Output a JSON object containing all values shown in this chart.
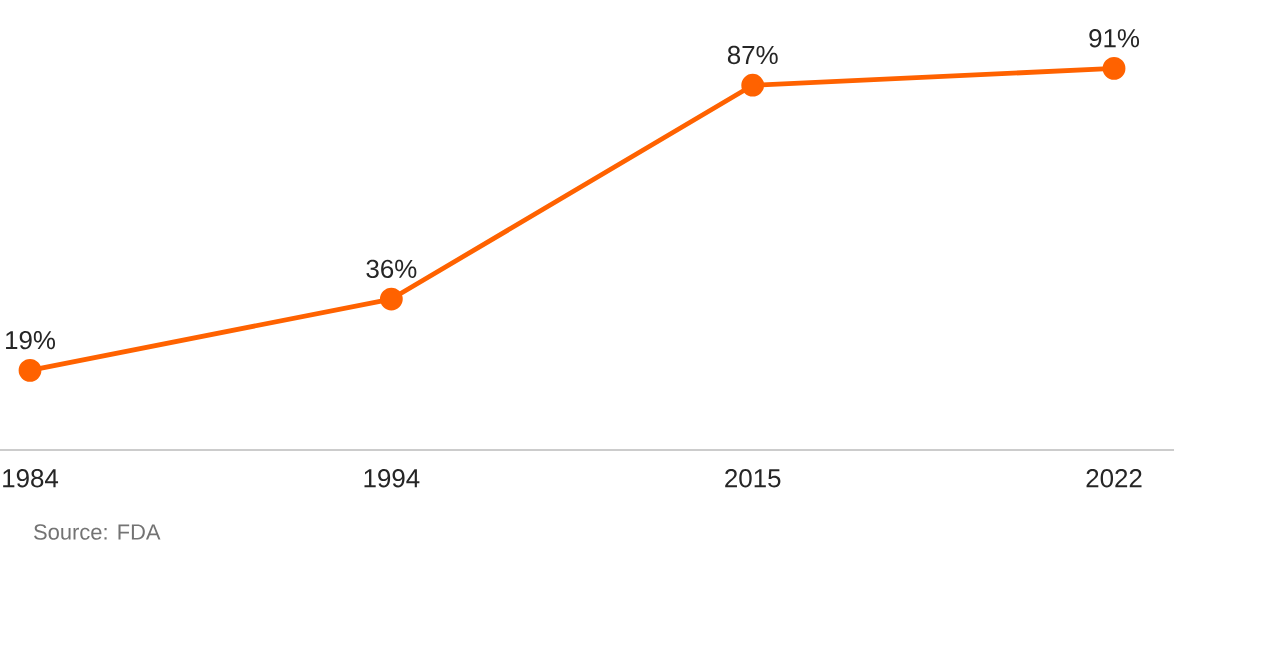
{
  "chart_data": {
    "type": "line",
    "categories": [
      "1984",
      "1994",
      "2015",
      "2022"
    ],
    "series": [
      {
        "color": "#ff6200",
        "values": [
          19,
          36,
          87,
          91
        ],
        "value_labels": [
          "19%",
          "36%",
          "87%",
          "91%"
        ]
      }
    ],
    "marker": "circle",
    "line_style": "solid",
    "tick_labels": "x",
    "annotations": [
      "Source: FDA"
    ]
  }
}
